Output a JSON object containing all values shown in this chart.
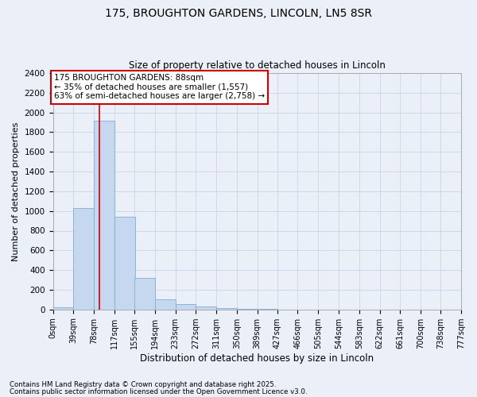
{
  "title_line1": "175, BROUGHTON GARDENS, LINCOLN, LN5 8SR",
  "title_line2": "Size of property relative to detached houses in Lincoln",
  "xlabel": "Distribution of detached houses by size in Lincoln",
  "ylabel": "Number of detached properties",
  "bar_left_edges": [
    0,
    39,
    78,
    117,
    155,
    194,
    233,
    272,
    311,
    350,
    389,
    427,
    466,
    505,
    544,
    583,
    622,
    661,
    700,
    738
  ],
  "bar_heights": [
    20,
    1030,
    1920,
    940,
    320,
    100,
    55,
    30,
    15,
    5,
    2,
    1,
    0,
    0,
    0,
    0,
    0,
    0,
    0,
    0
  ],
  "bin_width": 39,
  "tick_labels": [
    "0sqm",
    "39sqm",
    "78sqm",
    "117sqm",
    "155sqm",
    "194sqm",
    "233sqm",
    "272sqm",
    "311sqm",
    "350sqm",
    "389sqm",
    "427sqm",
    "466sqm",
    "505sqm",
    "544sqm",
    "583sqm",
    "622sqm",
    "661sqm",
    "700sqm",
    "738sqm",
    "777sqm"
  ],
  "bar_color": "#c5d8ef",
  "bar_edge_color": "#7bafd4",
  "property_line_x": 88,
  "annotation_text": "175 BROUGHTON GARDENS: 88sqm\n← 35% of detached houses are smaller (1,557)\n63% of semi-detached houses are larger (2,758) →",
  "annotation_box_color": "#ffffff",
  "annotation_box_edge_color": "#cc0000",
  "red_line_color": "#cc0000",
  "ylim": [
    0,
    2400
  ],
  "yticks": [
    0,
    200,
    400,
    600,
    800,
    1000,
    1200,
    1400,
    1600,
    1800,
    2000,
    2200,
    2400
  ],
  "grid_color": "#c8d4e8",
  "bg_color": "#eaeff8",
  "footer_line1": "Contains HM Land Registry data © Crown copyright and database right 2025.",
  "footer_line2": "Contains public sector information licensed under the Open Government Licence v3.0."
}
